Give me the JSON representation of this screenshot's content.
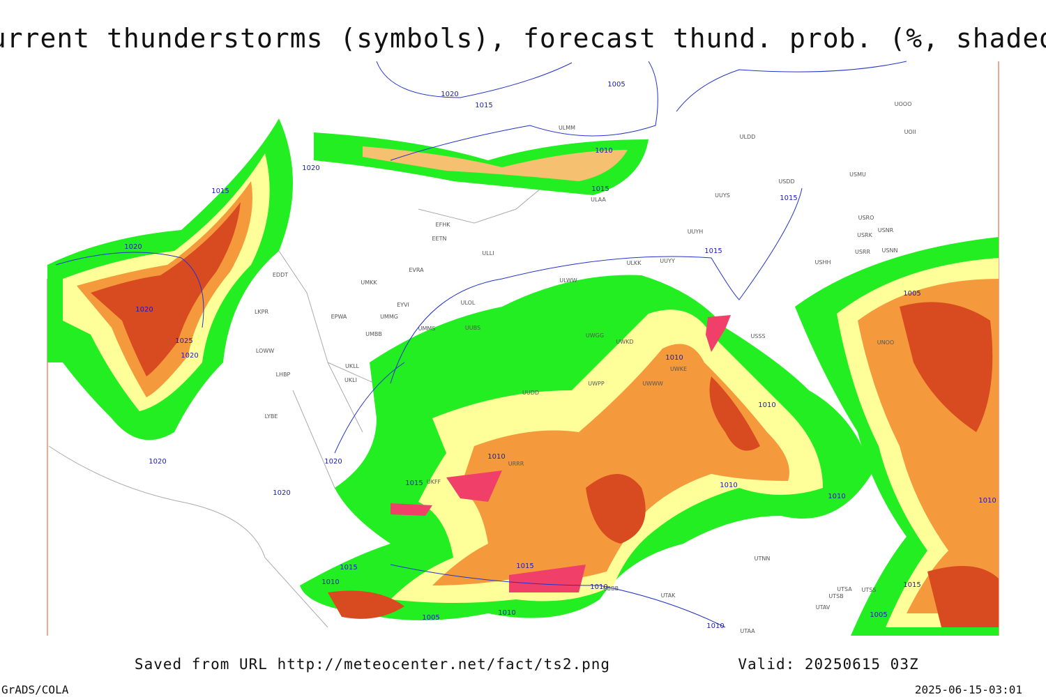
{
  "header": {
    "title": "Current thunderstorms (symbols), forecast thund. prob. (%, shaded)"
  },
  "map": {
    "isobars": [
      1020,
      1015,
      1005,
      1010,
      1015,
      1020,
      1015,
      1015,
      1015,
      1020,
      1020,
      1025,
      1020,
      1005,
      1010,
      1010,
      1020,
      1020,
      1010,
      1015,
      1020,
      1010,
      1010,
      1010,
      1015,
      1010,
      1015,
      1010,
      1005,
      1010,
      1010,
      1015,
      1005
    ],
    "stations": [
      "ULAA",
      "EFHK",
      "EETN",
      "EVRA",
      "ULOL",
      "UMKK",
      "EYVI",
      "UMMG",
      "EPWA",
      "UMBB",
      "UMMS",
      "UUBS",
      "ULLI",
      "EDDT",
      "LKPR",
      "LOWW",
      "LHBP",
      "UKLL",
      "UKLI",
      "LYBE",
      "UUDD",
      "UWWW",
      "UWGG",
      "UWKD",
      "UWKE",
      "UWPP",
      "ULWW",
      "ULKK",
      "UUYY",
      "UUYH",
      "UUYS",
      "ULDD",
      "USDD",
      "USMU",
      "USRO",
      "USRK",
      "USNR",
      "USRR",
      "USNN",
      "USHH",
      "USSS",
      "UNOO",
      "UTNN",
      "UTAK",
      "UTSA",
      "UTSS",
      "UTSB",
      "UTAV",
      "UTAA",
      "UBBB",
      "UOII",
      "UOOO",
      "ULMM",
      "UKFF",
      "URRR"
    ]
  },
  "footer": {
    "source": "Saved from URL http://meteocenter.net/fact/ts2.png",
    "valid": "Valid: 20250615 03Z",
    "software": "GrADS/COLA",
    "timestamp": "2025-06-15-03:01"
  }
}
